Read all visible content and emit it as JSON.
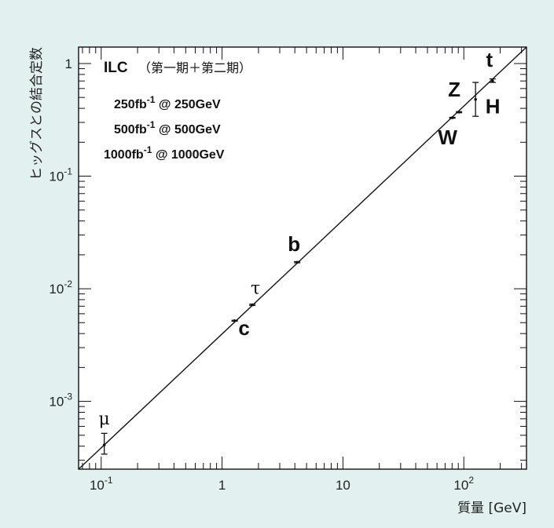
{
  "chart_data": {
    "type": "scatter",
    "title": "",
    "xlabel": "質量 [GeV]",
    "ylabel": "ヒッグスとの結合定数",
    "xscale": "log",
    "yscale": "log",
    "xlim": [
      0.065,
      330
    ],
    "ylim": [
      0.00025,
      1.4
    ],
    "x_ticks": [
      {
        "value": 0.1,
        "base": "10",
        "exp": "-1"
      },
      {
        "value": 1,
        "base": "1",
        "exp": ""
      },
      {
        "value": 10,
        "base": "10",
        "exp": ""
      },
      {
        "value": 100,
        "base": "10",
        "exp": "2"
      }
    ],
    "y_ticks": [
      {
        "value": 0.001,
        "base": "10",
        "exp": "-3"
      },
      {
        "value": 0.01,
        "base": "10",
        "exp": "-2"
      },
      {
        "value": 0.1,
        "base": "10",
        "exp": "-1"
      },
      {
        "value": 1,
        "base": "1",
        "exp": ""
      }
    ],
    "reference_line": {
      "description": "coupling ∝ mass",
      "from": [
        0.065,
        0.00025
      ],
      "to": [
        330,
        1.4
      ]
    },
    "points": [
      {
        "name": "μ",
        "x": 0.106,
        "y": 0.00041,
        "y_low": 0.00034,
        "y_high": 0.00052
      },
      {
        "name": "c",
        "x": 1.27,
        "y": 0.0052,
        "y_low": 0.00515,
        "y_high": 0.00525
      },
      {
        "name": "τ",
        "x": 1.78,
        "y": 0.0072,
        "y_low": 0.0071,
        "y_high": 0.0073
      },
      {
        "name": "b",
        "x": 4.18,
        "y": 0.0172,
        "y_low": 0.017,
        "y_high": 0.0174
      },
      {
        "name": "W",
        "x": 80.4,
        "y": 0.33,
        "y_low": 0.327,
        "y_high": 0.333
      },
      {
        "name": "Z",
        "x": 91.2,
        "y": 0.37,
        "y_low": 0.366,
        "y_high": 0.374
      },
      {
        "name": "H",
        "x": 125,
        "y": 0.48,
        "y_low": 0.34,
        "y_high": 0.68
      },
      {
        "name": "t",
        "x": 173,
        "y": 0.7,
        "y_low": 0.68,
        "y_high": 0.73
      }
    ],
    "legend": {
      "title": "ILC",
      "subtitle": "（第一期＋第二期）",
      "lines": [
        {
          "lum": "250fb",
          "exp": "-1",
          "energy": " @ 250GeV"
        },
        {
          "lum": "500fb",
          "exp": "-1",
          "energy": " @ 500GeV"
        },
        {
          "lum": "1000fb",
          "exp": "-1",
          "energy": " @ 1000GeV"
        }
      ],
      "placement": "top-left"
    },
    "grid": false,
    "colors": {
      "background": "#e2f0f0",
      "plot_background": "#ffffff",
      "ink": "#111111"
    }
  }
}
